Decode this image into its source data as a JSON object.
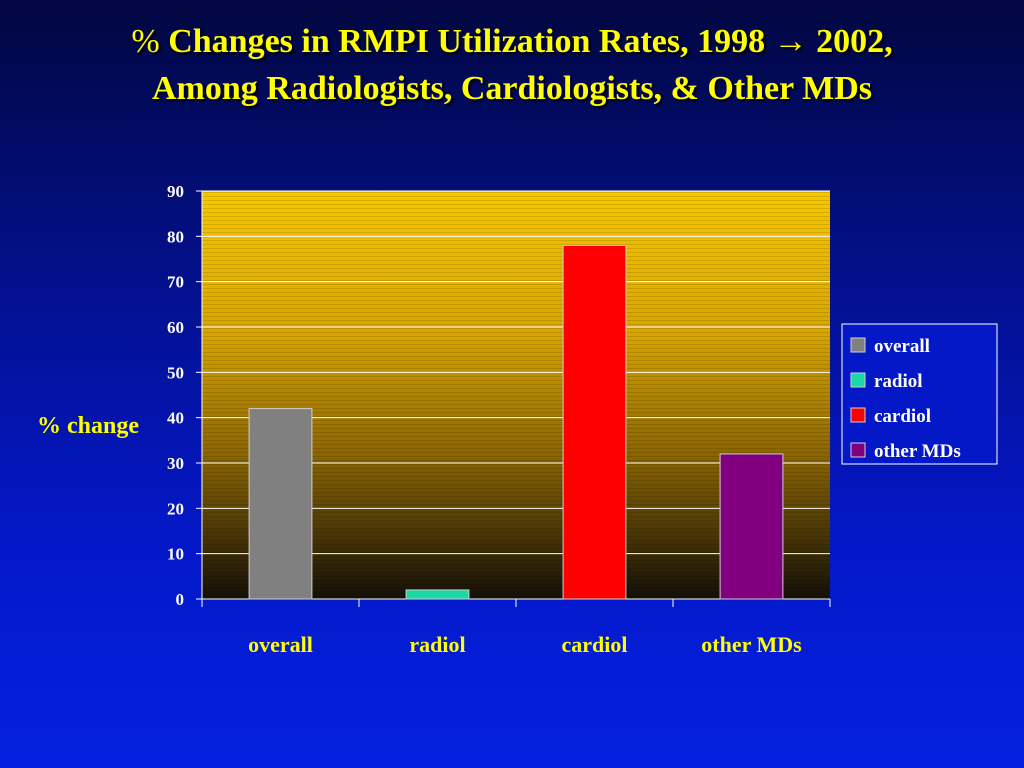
{
  "title": {
    "line1_prefix": "%",
    "line1_text": "Changes in RMPI Utilization Rates, 1998",
    "arrow": "→",
    "line1_suffix": "2002,",
    "line2": "Among Radiologists, Cardiologists, & Other MDs"
  },
  "chart_data": {
    "type": "bar",
    "categories": [
      "overall",
      "radiol",
      "cardiol",
      "other MDs"
    ],
    "values": [
      42,
      2,
      78,
      32
    ],
    "colors": [
      "#808080",
      "#1ad9a6",
      "#ff0000",
      "#800080"
    ],
    "ylabel": "% change",
    "xlabel": "",
    "ylim": [
      0,
      90
    ],
    "yticks": [
      0,
      10,
      20,
      30,
      40,
      50,
      60,
      70,
      80,
      90
    ],
    "grid": true,
    "legend": {
      "placement": "right",
      "entries": [
        "overall",
        "radiol",
        "cardiol",
        "other MDs"
      ]
    }
  }
}
